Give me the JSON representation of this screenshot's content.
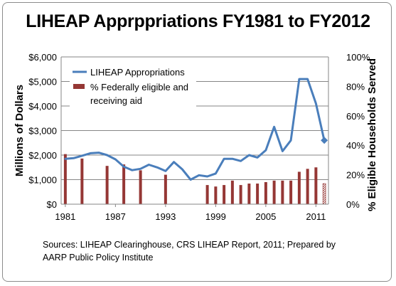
{
  "chart_data": {
    "type": "bar+line",
    "title": "LIHEAP Apprppriations FY1981 to FY2012",
    "ylabel": "Millions of Dollars",
    "y2label": "% Eligible Households Served",
    "ylim": [
      0,
      6000
    ],
    "y2lim": [
      0,
      100
    ],
    "xlim": [
      1980.5,
      2012.5
    ],
    "yticks": [
      "$0",
      "$1,000",
      "$2,000",
      "$3,000",
      "$4,000",
      "$5,000",
      "$6,000"
    ],
    "y2ticks": [
      "0%",
      "20%",
      "40%",
      "60%",
      "80%",
      "100%"
    ],
    "xticks": [
      "1981",
      "1987",
      "1993",
      "1999",
      "2005",
      "2011"
    ],
    "grid": "horizontal",
    "legend_position": "top-left",
    "series": [
      {
        "name": "LIHEAP Appropriations",
        "type": "line",
        "axis": "left",
        "color": "#4a7ebb",
        "x": [
          1981,
          1982,
          1983,
          1984,
          1985,
          1986,
          1987,
          1988,
          1989,
          1990,
          1991,
          1992,
          1993,
          1994,
          1995,
          1996,
          1997,
          1998,
          1999,
          2000,
          2001,
          2002,
          2003,
          2004,
          2005,
          2006,
          2007,
          2008,
          2009,
          2010,
          2011,
          2012
        ],
        "values": [
          1850,
          1875,
          1975,
          2075,
          2100,
          2000,
          1825,
          1530,
          1385,
          1440,
          1610,
          1500,
          1350,
          1720,
          1420,
          1000,
          1180,
          1130,
          1250,
          1850,
          1850,
          1760,
          2000,
          1900,
          2200,
          3150,
          2160,
          2600,
          5100,
          5100,
          4100,
          2600
        ]
      },
      {
        "name": "% Federally eligible and receiving aid",
        "type": "bar",
        "axis": "right",
        "color": "#953735",
        "x": [
          1981,
          1983,
          1986,
          1988,
          1990,
          1993,
          1998,
          1999,
          2000,
          2001,
          2002,
          2003,
          2004,
          2005,
          2006,
          2007,
          2008,
          2009,
          2010,
          2011,
          2012
        ],
        "values": [
          34,
          31,
          26,
          27,
          23,
          20,
          13,
          12,
          13,
          16,
          13,
          14,
          14,
          15,
          16,
          16,
          16,
          22,
          24,
          25,
          14
        ],
        "last_bar_hatched": true
      }
    ]
  },
  "source_note": {
    "line1": "Sources: LIHEAP Clearinghouse, CRS LIHEAP Report, 2011; Prepared by",
    "line2": "AARP Public Policy Institute"
  }
}
